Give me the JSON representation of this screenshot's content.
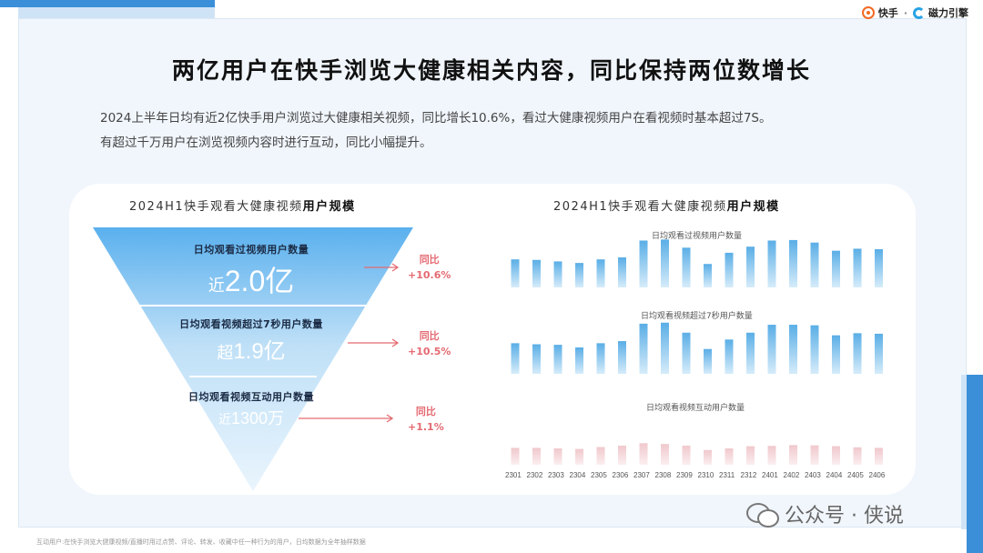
{
  "brand": {
    "kuaishou": "快手",
    "separator": "·",
    "cili": "磁力引擎"
  },
  "title": "两亿用户在快手浏览大健康相关内容，同比保持两位数增长",
  "description": [
    "2024上半年日均有近2亿快手用户浏览过大健康相关视频，同比增长10.6%，看过大健康视频用户在看视频时基本超过7S。",
    "有超过千万用户在浏览视频内容时进行互动，同比小幅提升。"
  ],
  "left_section": {
    "title_plain": "2024H1快手观看大健康视频",
    "title_bold": "用户规模"
  },
  "right_section": {
    "title_plain": "2024H1快手观看大健康视频",
    "title_bold": "用户规模"
  },
  "funnel": [
    {
      "label": "日均观看过视频用户数量",
      "prefix": "近",
      "value": "2.0亿",
      "yoy_label": "同比",
      "yoy_value": "+10.6%"
    },
    {
      "label": "日均观看视频超过7秒用户数量",
      "prefix": "超",
      "value": "1.9亿",
      "yoy_label": "同比",
      "yoy_value": "+10.5%"
    },
    {
      "label": "日均观看视频互动用户数量",
      "prefix": "近",
      "value": "1300万",
      "yoy_label": "同比",
      "yoy_value": "+1.1%"
    }
  ],
  "colors": {
    "accent": "#3b8fd8",
    "bar_blue": "#5aaee6",
    "bar_pink": "#f0c8cc",
    "yoy": "#e46a72"
  },
  "chart_data": [
    {
      "type": "bar",
      "title": "日均观看过视频用户数量",
      "categories": [
        "2301",
        "2302",
        "2303",
        "2304",
        "2305",
        "2306",
        "2307",
        "2308",
        "2309",
        "2310",
        "2311",
        "2312",
        "2401",
        "2402",
        "2403",
        "2404",
        "2405",
        "2406"
      ],
      "values": [
        55,
        54,
        51,
        48,
        55,
        59,
        92,
        94,
        78,
        46,
        68,
        80,
        92,
        93,
        88,
        72,
        76,
        75
      ]
    },
    {
      "type": "bar",
      "title": "日均观看视频超过7秒用户数量",
      "categories": [
        "2301",
        "2302",
        "2303",
        "2304",
        "2305",
        "2306",
        "2307",
        "2308",
        "2309",
        "2310",
        "2311",
        "2312",
        "2401",
        "2402",
        "2403",
        "2404",
        "2405",
        "2406"
      ],
      "values": [
        58,
        56,
        55,
        50,
        58,
        62,
        95,
        97,
        78,
        47,
        65,
        78,
        93,
        93,
        92,
        73,
        77,
        76
      ]
    },
    {
      "type": "bar",
      "title": "日均观看视频互动用户数量",
      "categories": [
        "2301",
        "2302",
        "2303",
        "2304",
        "2305",
        "2306",
        "2307",
        "2308",
        "2309",
        "2310",
        "2311",
        "2312",
        "2401",
        "2402",
        "2403",
        "2404",
        "2405",
        "2406"
      ],
      "values": [
        62,
        62,
        60,
        58,
        65,
        70,
        79,
        76,
        70,
        54,
        60,
        68,
        69,
        72,
        71,
        68,
        64,
        62
      ]
    }
  ],
  "footnote": "互动用户:在快手浏览大健康视频/直播时用过点赞、评论、转发、收藏中任一种行为的用户，日均数据为全年抽样数据",
  "watermark": "公众号 · 侠说"
}
